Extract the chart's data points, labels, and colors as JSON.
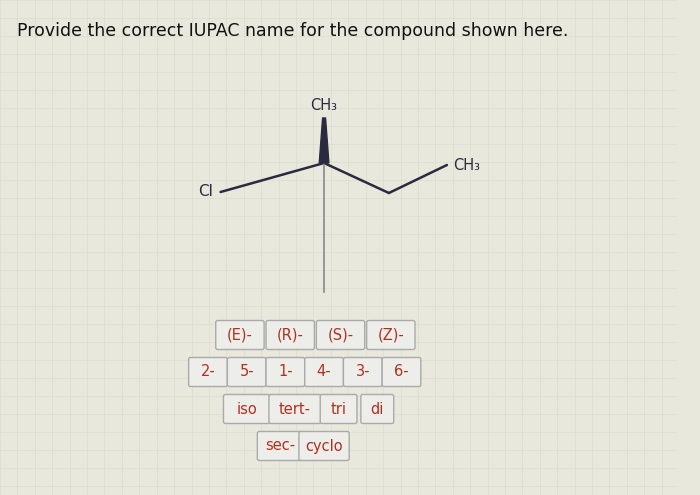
{
  "title": "Provide the correct IUPAC name for the compound shown here.",
  "title_fontsize": 12.5,
  "background_color": "#e8e8dc",
  "grid_color": "#d0d0c0",
  "molecule": {
    "bond_color": "#2a2a40",
    "cl_label": "Cl",
    "ch3_top_label": "CH₃",
    "ch3_right_label": "CH₃",
    "label_fontsize": 11
  },
  "buttons": {
    "row1": [
      "(E)-",
      "(R)-",
      "(S)-",
      "(Z)-"
    ],
    "row2": [
      "2-",
      "5-",
      "1-",
      "4-",
      "3-",
      "6-"
    ],
    "row3": [
      "iso",
      "tert-",
      "tri",
      "di"
    ],
    "row4": [
      "sec-",
      "cyclo"
    ],
    "text_color": "#b03020",
    "border_color": "#aaaaaa",
    "bg_color": "#ededea",
    "btn_fontsize": 10.5
  }
}
